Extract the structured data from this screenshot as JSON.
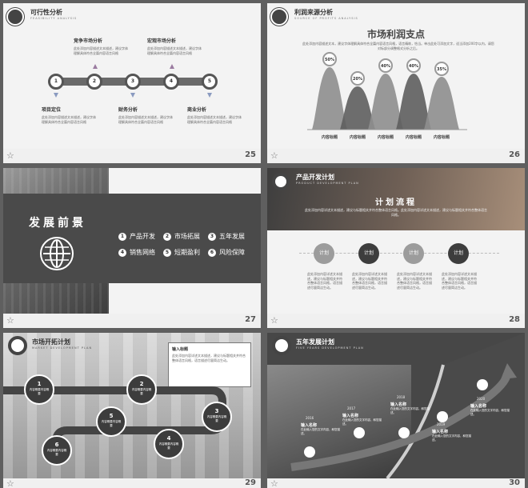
{
  "pages": {
    "p25": {
      "num": "25",
      "title": "可行性分析",
      "subtitle": "FEASIBILITY ANALYSIS",
      "top": [
        {
          "title": "竞争市场分析",
          "text": "此处添加内容描述文本描述，建议字体理解具体符合全篇内容语言风格"
        },
        {
          "title": "宏观市场分析",
          "text": "此处添加内容描述文本描述，建议字体理解具体符合全篇内容语言风格"
        }
      ],
      "bottom": [
        {
          "title": "项目定位",
          "text": "此处添加内容描述文本描述，建议字体理解具体符合全篇内容语言风格"
        },
        {
          "title": "财务分析",
          "text": "此处添加内容描述文本描述，建议字体理解具体符合全篇内容语言风格"
        },
        {
          "title": "商业分析",
          "text": "此处添加内容描述文本描述，建议字体理解具体符合全篇内容语言风格"
        }
      ],
      "steps": [
        "1",
        "2",
        "3",
        "4",
        "5"
      ]
    },
    "p26": {
      "num": "26",
      "title": "利润来源分析",
      "subtitle": "SOURCE OF PROFITS ANALYSIS",
      "heading": "市场利润支点",
      "desc": "此处添加内容描述文本，建议字体理解具体符合全篇内容语言风格，语言精练，恰当。单击此处可添加文字，适当添加200字以内，请您对标部分调整格式分析之后。",
      "chart_data": {
        "type": "area",
        "categories": [
          "内容标题",
          "内容标题",
          "内容标题",
          "内容标题",
          "内容标题"
        ],
        "values": [
          50,
          20,
          40,
          40,
          35
        ],
        "labels": [
          "50%",
          "20%",
          "40%",
          "40%",
          "35%"
        ]
      }
    },
    "p27": {
      "num": "27",
      "title": "发展前景",
      "items": [
        {
          "n": "1",
          "label": "产品开发"
        },
        {
          "n": "2",
          "label": "市场拓展"
        },
        {
          "n": "3",
          "label": "五年发展"
        },
        {
          "n": "4",
          "label": "销售网络"
        },
        {
          "n": "5",
          "label": "短期盈利"
        },
        {
          "n": "6",
          "label": "风险保障"
        }
      ]
    },
    "p28": {
      "num": "28",
      "title": "产品开发计划",
      "subtitle": "PRODUCT DEVELOPMENT PLAN",
      "banner_title": "计划流程",
      "banner_text": "此处添加内容详述文本描述，建议与标题相关并符合整体语言风格。此处添加内容详述文本描述，建议与标题相关并符合整体语言风格。",
      "step_label": "计划",
      "step_text": "此处添加内容详述文本描述，建议与标题相关并符合整体语言风格，语言描述尽量简洁生动。"
    },
    "p29": {
      "num": "29",
      "title": "市场开拓计划",
      "subtitle": "MARKET DEVELOPMENT PLAN",
      "box_title": "输入标题",
      "box_text": "此处添加内容详述文本描述，建议与标题相关并符合整体语言风格，语言描述尽量简洁生动。",
      "node_text": "内容概要内容概要",
      "nodes": [
        "1",
        "2",
        "3",
        "4",
        "5",
        "6"
      ]
    },
    "p30": {
      "num": "30",
      "title": "五年发展计划",
      "subtitle": "FIVE YEARS DEVELOPMENT PLAN",
      "years": [
        "2016",
        "2017",
        "2018",
        "2019",
        "2020"
      ],
      "name_label": "输入名称",
      "name_text": "在此输入您的文字内容，和您描述。"
    }
  }
}
